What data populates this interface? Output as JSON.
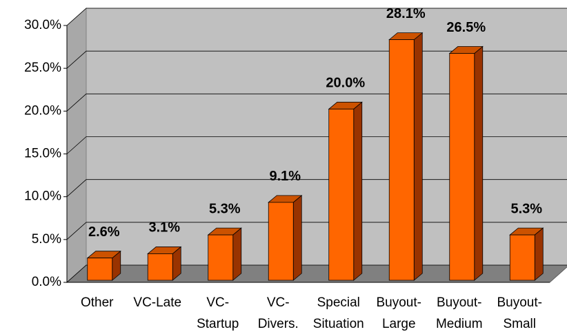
{
  "chart_data": {
    "type": "bar3d",
    "categories": [
      [
        "Other"
      ],
      [
        "VC-Late"
      ],
      [
        "VC-",
        "Startup"
      ],
      [
        "VC-",
        "Divers."
      ],
      [
        "Special",
        "Situation"
      ],
      [
        "Buyout-",
        "Large"
      ],
      [
        "Buyout-",
        "Medium"
      ],
      [
        "Buyout-",
        "Small"
      ]
    ],
    "values": [
      2.6,
      3.1,
      5.3,
      9.1,
      20.0,
      28.1,
      26.5,
      5.3
    ],
    "value_labels": [
      "2.6%",
      "3.1%",
      "5.3%",
      "9.1%",
      "20.0%",
      "28.1%",
      "26.5%",
      "5.3%"
    ],
    "color": "#ff6600",
    "ylim": [
      0,
      30
    ],
    "yticks": [
      {
        "value": 0,
        "label": "0.0%"
      },
      {
        "value": 5,
        "label": "5.0%"
      },
      {
        "value": 10,
        "label": "10.0%"
      },
      {
        "value": 15,
        "label": "15.0%"
      },
      {
        "value": 20,
        "label": "20.0%"
      },
      {
        "value": 25,
        "label": "25.0%"
      },
      {
        "value": 30,
        "label": "30.0%"
      }
    ],
    "grid": true
  }
}
